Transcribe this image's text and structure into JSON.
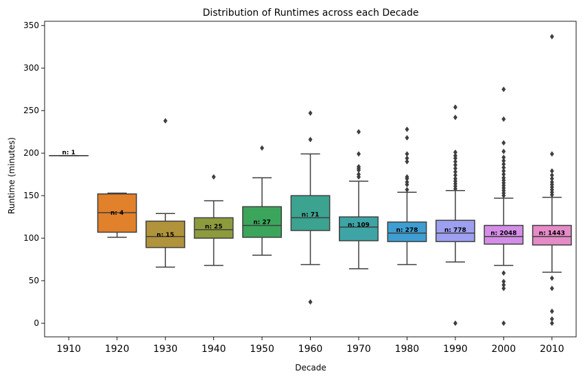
{
  "chart_data": {
    "type": "box",
    "title": "Distribution of Runtimes across each Decade",
    "xlabel": "Decade",
    "ylabel": "Runtime (minutes)",
    "ylim": [
      -16,
      355
    ],
    "yticks": [
      0,
      50,
      100,
      150,
      200,
      250,
      300,
      350
    ],
    "grid": false,
    "categories": [
      "1910",
      "1920",
      "1930",
      "1940",
      "1950",
      "1960",
      "1970",
      "1980",
      "1990",
      "2000",
      "2010"
    ],
    "boxes": [
      {
        "decade": "1910",
        "color": "#3274a1",
        "whisker_low": 197,
        "q1": 197,
        "median": 197,
        "q3": 197,
        "whisker_high": 197,
        "outliers": [],
        "count_label": "n: 1",
        "count_y": 201
      },
      {
        "decade": "1920",
        "color": "#e1812c",
        "whisker_low": 101,
        "q1": 107,
        "median": 130,
        "q3": 152,
        "whisker_high": 153,
        "outliers": [],
        "count_label": "n: 4",
        "count_y": 130
      },
      {
        "decade": "1930",
        "color": "#b0933a",
        "whisker_low": 66,
        "q1": 89,
        "median": 102,
        "q3": 120,
        "whisker_high": 129,
        "outliers": [
          238
        ],
        "count_label": "n: 15",
        "count_y": 104
      },
      {
        "decade": "1940",
        "color": "#8e9b3c",
        "whisker_low": 68,
        "q1": 100,
        "median": 110,
        "q3": 124,
        "whisker_high": 144,
        "outliers": [
          172
        ],
        "count_label": "n: 25",
        "count_y": 114
      },
      {
        "decade": "1950",
        "color": "#3ba55c",
        "whisker_low": 80,
        "q1": 101,
        "median": 115,
        "q3": 137,
        "whisker_high": 171,
        "outliers": [
          206
        ],
        "count_label": "n: 27",
        "count_y": 119
      },
      {
        "decade": "1960",
        "color": "#3ca390",
        "whisker_low": 69,
        "q1": 109,
        "median": 124,
        "q3": 150,
        "whisker_high": 199,
        "outliers": [
          25,
          216,
          247
        ],
        "count_label": "n: 71",
        "count_y": 128
      },
      {
        "decade": "1970",
        "color": "#3ea4a5",
        "whisker_low": 64,
        "q1": 97,
        "median": 113,
        "q3": 125,
        "whisker_high": 167,
        "outliers": [
          172,
          175,
          180,
          182,
          184,
          199,
          225
        ],
        "count_label": "n: 109",
        "count_y": 116
      },
      {
        "decade": "1980",
        "color": "#3e9ed1",
        "whisker_low": 69,
        "q1": 96,
        "median": 106,
        "q3": 119,
        "whisker_high": 154,
        "outliers": [
          157,
          163,
          166,
          170,
          172,
          190,
          194,
          199,
          218,
          228
        ],
        "count_label": "n: 278",
        "count_y": 110
      },
      {
        "decade": "1990",
        "color": "#9da0f0",
        "whisker_low": 72,
        "q1": 96,
        "median": 106,
        "q3": 121,
        "whisker_high": 156,
        "outliers": [
          0,
          158,
          161,
          164,
          167,
          170,
          174,
          178,
          182,
          186,
          190,
          194,
          197,
          201,
          242,
          254
        ],
        "count_label": "n: 778",
        "count_y": 110
      },
      {
        "decade": "2000",
        "color": "#d48ee7",
        "whisker_low": 68,
        "q1": 93,
        "median": 102,
        "q3": 115,
        "whisker_high": 147,
        "outliers": [
          0,
          41,
          45,
          49,
          59,
          150,
          153,
          156,
          159,
          162,
          165,
          168,
          171,
          175,
          179,
          183,
          187,
          191,
          195,
          202,
          212,
          240,
          275
        ],
        "count_label": "n: 2048",
        "count_y": 106
      },
      {
        "decade": "2010",
        "color": "#e58bc7",
        "whisker_low": 60,
        "q1": 92,
        "median": 102,
        "q3": 115,
        "whisker_high": 148,
        "outliers": [
          0,
          5,
          14,
          41,
          53,
          151,
          154,
          157,
          160,
          163,
          166,
          170,
          174,
          179,
          199,
          337
        ],
        "count_label": "n: 1443",
        "count_y": 106
      }
    ]
  }
}
